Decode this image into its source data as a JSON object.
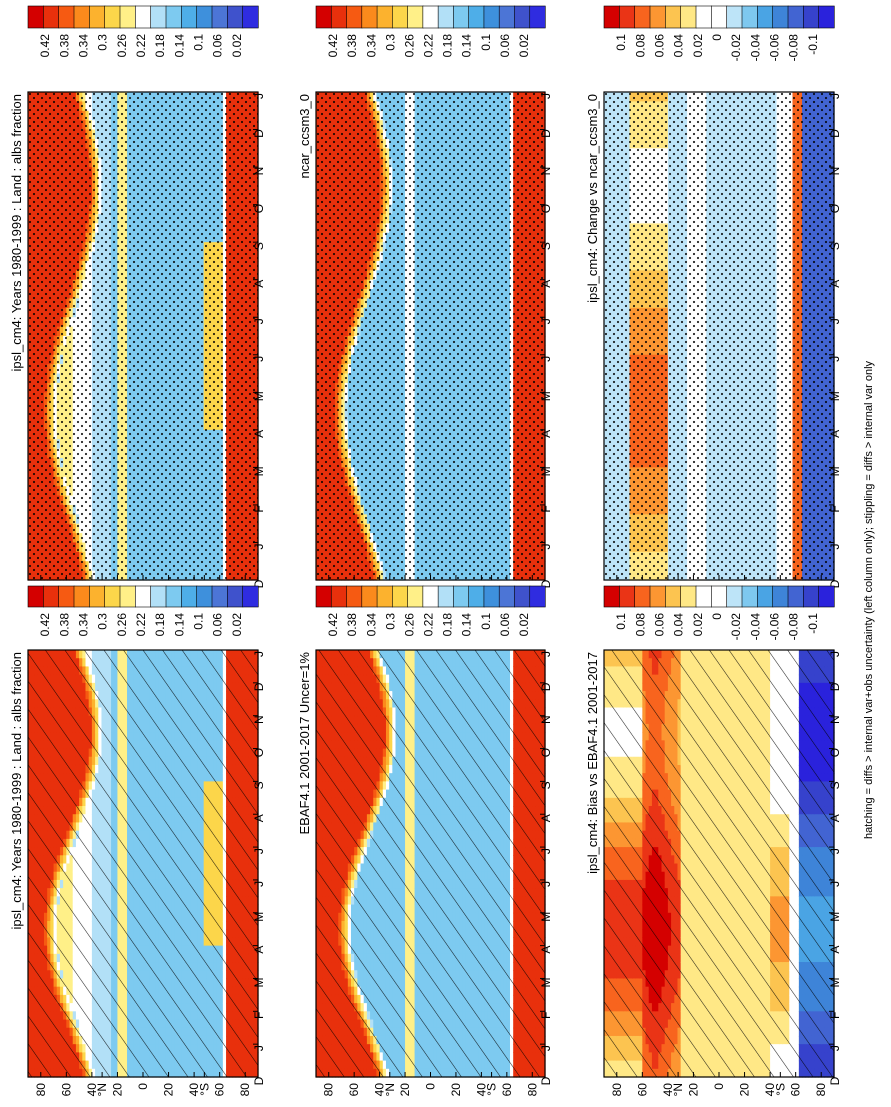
{
  "footer_note": "hatching = diffs > internal var+obs uncertainty (left column only); stippling = diffs > internal var only",
  "axis": {
    "months": [
      "D",
      "J",
      "F",
      "M",
      "A",
      "M",
      "J",
      "J",
      "A",
      "S",
      "O",
      "N",
      "D",
      "J"
    ],
    "lat_ticks": [
      "80",
      "60",
      "40",
      "°N",
      "20",
      "0",
      "20",
      "40",
      "°S",
      "60",
      "80"
    ]
  },
  "colorbars": {
    "albedo": {
      "labels": [
        "0.42",
        "0.38",
        "0.34",
        "0.3",
        "0.26",
        "0.22",
        "0.18",
        "0.14",
        "0.1",
        "0.06",
        "0.02"
      ]
    },
    "diff": {
      "labels": [
        "0.1",
        "0.08",
        "0.06",
        "0.04",
        "0.02",
        "0",
        "-0.02",
        "-0.04",
        "-0.06",
        "-0.08",
        "-0.1"
      ]
    }
  },
  "panels": [
    {
      "id": "a",
      "title": "ipsl_cm4: Years 1980-1999 : Land : albs fraction",
      "pattern": "hatch",
      "kind": "albedo"
    },
    {
      "id": "b",
      "title": "ipsl_cm4: Years 1980-1999 : Land : albs fraction",
      "pattern": "stipple",
      "kind": "albedo"
    },
    {
      "id": "c",
      "title": "EBAF4.1 2001-2017 Uncer=1%",
      "pattern": "hatch",
      "kind": "albedo"
    },
    {
      "id": "d",
      "title": "ncar_ccsm3_0",
      "pattern": "stipple",
      "kind": "albedo"
    },
    {
      "id": "e",
      "title": "ipsl_cm4: Bias vs EBAF4.1 2001-2017",
      "pattern": "hatch",
      "kind": "diff"
    },
    {
      "id": "f",
      "title": "ipsl_cm4: Change vs ncar_ccsm3_0",
      "pattern": "stipple",
      "kind": "diff"
    }
  ],
  "chart_data": [
    {
      "type": "heatmap",
      "title": "ipsl_cm4: Years 1980-1999 : Land : albs fraction",
      "x": [
        "D",
        "J",
        "F",
        "M",
        "A",
        "M",
        "J",
        "J",
        "A",
        "S",
        "O",
        "N",
        "D",
        "J"
      ],
      "y_range": [
        -90,
        90
      ],
      "colorbar": [
        0.02,
        0.42
      ],
      "values_by_lat": {
        "80N": 0.42,
        "60N": 0.34,
        "40N": 0.2,
        "20N": 0.26,
        "0": 0.14,
        "20S": 0.14,
        "40S": 0.14,
        "60S": 0.42,
        "80S": 0.42
      }
    },
    {
      "type": "heatmap",
      "title": "EBAF4.1 2001-2017 Uncer=1%",
      "x": [
        "D",
        "J",
        "F",
        "M",
        "A",
        "M",
        "J",
        "J",
        "A",
        "S",
        "O",
        "N",
        "D",
        "J"
      ],
      "y_range": [
        -90,
        90
      ],
      "colorbar": [
        0.02,
        0.42
      ],
      "values_by_lat": {
        "80N": 0.42,
        "60N": 0.3,
        "40N": 0.16,
        "20N": 0.26,
        "0": 0.14,
        "20S": 0.14,
        "40S": 0.14,
        "60S": 0.42,
        "80S": 0.42
      }
    },
    {
      "type": "heatmap",
      "title": "ncar_ccsm3_0",
      "x": [
        "D",
        "J",
        "F",
        "M",
        "A",
        "M",
        "J",
        "J",
        "A",
        "S",
        "O",
        "N",
        "D",
        "J"
      ],
      "y_range": [
        -90,
        90
      ],
      "colorbar": [
        0.02,
        0.42
      ],
      "values_by_lat": {
        "80N": 0.42,
        "60N": 0.38,
        "40N": 0.16,
        "20N": 0.22,
        "0": 0.14,
        "20S": 0.14,
        "40S": 0.14,
        "60S": 0.42,
        "80S": 0.42
      }
    },
    {
      "type": "heatmap",
      "title": "ipsl_cm4: Bias vs EBAF4.1 2001-2017",
      "x": [
        "D",
        "J",
        "F",
        "M",
        "A",
        "M",
        "J",
        "J",
        "A",
        "S",
        "O",
        "N",
        "D",
        "J"
      ],
      "y_range": [
        -90,
        90
      ],
      "colorbar": [
        -0.1,
        0.1
      ],
      "values_by_lat": {
        "80N": 0.08,
        "60N": 0.1,
        "40N": 0.06,
        "20N": 0.04,
        "0": 0.02,
        "20S": 0.02,
        "40S": 0.04,
        "60S": 0.0,
        "80S": -0.08
      }
    },
    {
      "type": "heatmap",
      "title": "ipsl_cm4: Change vs ncar_ccsm3_0",
      "x": [
        "D",
        "J",
        "F",
        "M",
        "A",
        "M",
        "J",
        "J",
        "A",
        "S",
        "O",
        "N",
        "D",
        "J"
      ],
      "y_range": [
        -90,
        90
      ],
      "colorbar": [
        -0.1,
        0.1
      ],
      "values_by_lat": {
        "80N": -0.02,
        "60N": 0.06,
        "40N": 0.0,
        "20N": 0.0,
        "0": -0.02,
        "20S": -0.02,
        "40S": 0.0,
        "60S": -0.04,
        "80S": -0.08
      }
    }
  ],
  "colors": {
    "albedo_scale": [
      "#d40000",
      "#e8300c",
      "#f65a12",
      "#fb8a1c",
      "#fcb22e",
      "#fcd64a",
      "#fff088",
      "#ffffff",
      "#b2e0f7",
      "#7dcaf0",
      "#4eaee8",
      "#3e90dc",
      "#4c75d6",
      "#3f52cc",
      "#2f2ce0"
    ],
    "diff_scale": [
      "#d40000",
      "#ea3416",
      "#f8641e",
      "#fc9632",
      "#fcc450",
      "#ffe886",
      "#ffffff",
      "#ffffff",
      "#bde4f8",
      "#7ec8ef",
      "#4aa4e4",
      "#3e84d8",
      "#4264d2",
      "#3642cc",
      "#2a22dc"
    ]
  }
}
